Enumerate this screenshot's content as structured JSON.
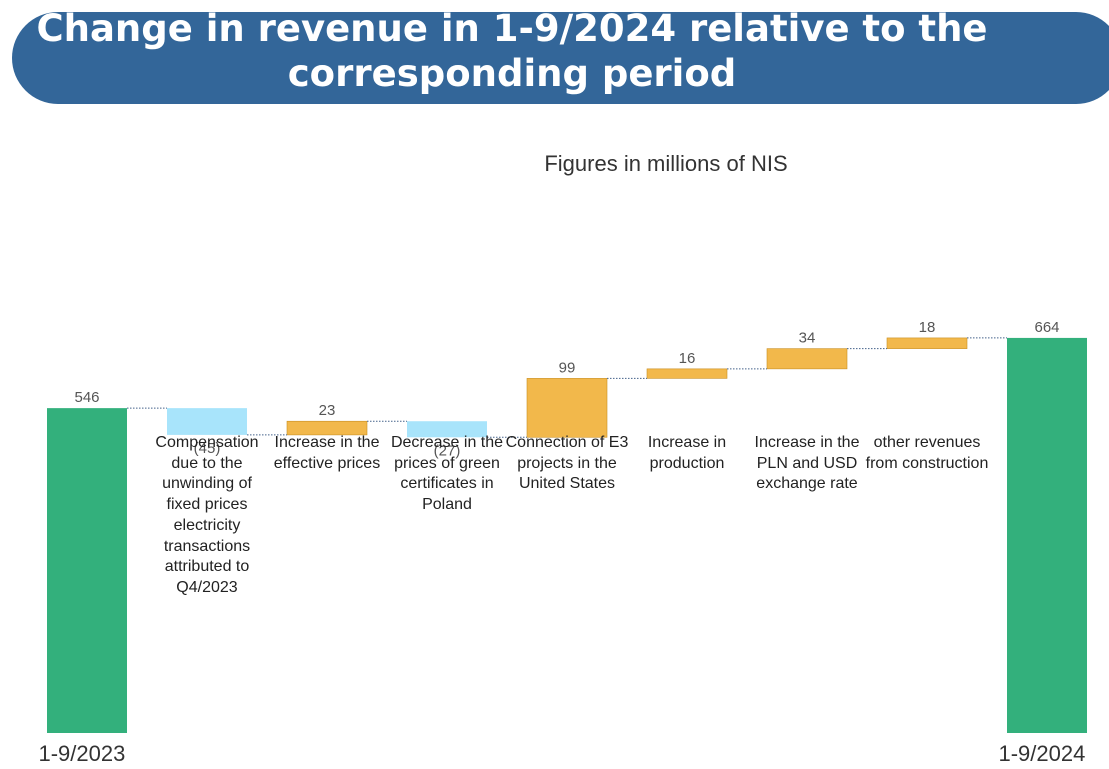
{
  "header": {
    "title": "Change in revenue in 1-9/2024 relative to the corresponding period",
    "subtitle": "Figures in millions of NIS"
  },
  "colors": {
    "banner": "#336699",
    "total": "#33b07c",
    "increase": "#f2b84b",
    "decrease": "#a8e4fb",
    "connector": "#44628a"
  },
  "chart_data": {
    "type": "bar",
    "subtype": "waterfall",
    "categories": [
      "1-9/2023",
      "Compensation due to the unwinding of fixed prices electricity transactions attributed to Q4/2023",
      "Increase in the effective prices",
      "Decrease in the prices of green certificates in Poland",
      "Connection of E3 projects in the United States",
      "Increase in production",
      "Increase in the PLN and USD exchange rate",
      "other revenues from construction",
      "1-9/2024"
    ],
    "values": [
      546,
      -45,
      23,
      -27,
      99,
      16,
      34,
      18,
      664
    ],
    "kinds": [
      "total",
      "decrease",
      "increase",
      "decrease",
      "increase",
      "increase",
      "increase",
      "increase",
      "total"
    ],
    "data_labels": [
      "546",
      "(45)",
      "23",
      "(27)",
      "99",
      "16",
      "34",
      "18",
      "664"
    ],
    "x_labels": [
      "1-9/2023",
      "1-9/2024"
    ],
    "descriptions": [
      "Compensation due to the unwinding of fixed prices electricity transactions attributed to Q4/2023",
      "Increase in the effective prices",
      "Decrease in the prices of green certificates in Poland",
      "Connection of E3 projects in the United States",
      "Increase in production",
      "Increase in the PLN and USD exchange rate",
      "other revenues from construction"
    ],
    "grid": false,
    "legend": "none"
  }
}
